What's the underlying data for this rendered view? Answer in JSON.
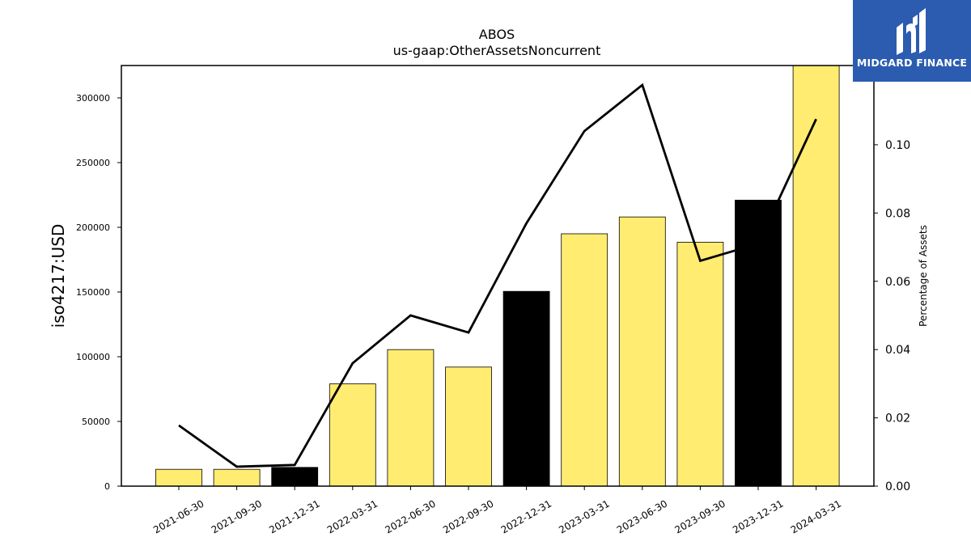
{
  "chart_data": {
    "type": "bar",
    "title": "ABOS",
    "subtitle": "us-gaap:OtherAssetsNoncurrent",
    "ylabel": "iso4217:USD",
    "y2label": "Percentage of Assets",
    "categories": [
      "2021-06-30",
      "2021-09-30",
      "2021-12-31",
      "2022-03-31",
      "2022-06-30",
      "2022-09-30",
      "2022-12-31",
      "2023-03-31",
      "2023-06-30",
      "2023-09-30",
      "2023-12-31",
      "2024-03-31"
    ],
    "values": [
      13000,
      13000,
      14500,
      79000,
      105500,
      92000,
      150500,
      195000,
      208000,
      188500,
      221000,
      325000
    ],
    "bar_colors": [
      "#ffec70",
      "#ffec70",
      "#000000",
      "#ffec70",
      "#ffec70",
      "#ffec70",
      "#000000",
      "#ffec70",
      "#ffec70",
      "#ffec70",
      "#000000",
      "#ffec70"
    ],
    "line_values": [
      0.0178,
      0.0057,
      0.0062,
      0.036,
      0.05,
      0.045,
      0.077,
      0.104,
      0.1175,
      0.066,
      0.071,
      0.1075
    ],
    "ylim": [
      0,
      325000
    ],
    "y2lim": [
      0,
      0.1232
    ],
    "yticks": [
      0,
      50000,
      100000,
      150000,
      200000,
      250000,
      300000
    ],
    "y2ticks": [
      "0.00",
      "0.02",
      "0.04",
      "0.06",
      "0.08",
      "0.10"
    ],
    "line_color": "#000000"
  },
  "logo": {
    "text": "MIDGARD FINANCE",
    "icon": "midgard-logo-icon"
  }
}
